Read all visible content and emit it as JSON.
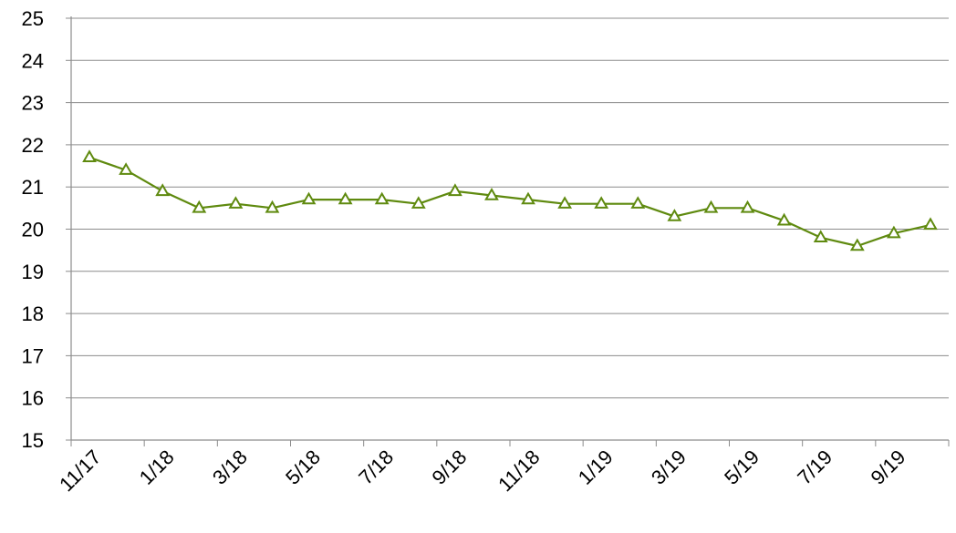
{
  "chart_data": {
    "type": "line",
    "title": "",
    "xlabel": "",
    "ylabel": "",
    "ylim": [
      15,
      25
    ],
    "y_ticks": [
      15,
      16,
      17,
      18,
      19,
      20,
      21,
      22,
      23,
      24,
      25
    ],
    "grid": "horizontal",
    "legend": "none",
    "x": [
      "11/17",
      "12/17",
      "1/18",
      "2/18",
      "3/18",
      "4/18",
      "5/18",
      "6/18",
      "7/18",
      "8/18",
      "9/18",
      "10/18",
      "11/18",
      "12/18",
      "1/19",
      "2/19",
      "3/19",
      "4/19",
      "5/19",
      "6/19",
      "7/19",
      "8/19",
      "9/19",
      "10/19"
    ],
    "x_tick_labels": [
      "11/17",
      "1/18",
      "3/18",
      "5/18",
      "7/18",
      "9/18",
      "11/18",
      "1/19",
      "3/19",
      "5/19",
      "7/19",
      "9/19"
    ],
    "series": [
      {
        "values": [
          21.7,
          21.4,
          20.9,
          20.5,
          20.6,
          20.5,
          20.7,
          20.7,
          20.7,
          20.6,
          20.9,
          20.8,
          20.7,
          20.6,
          20.6,
          20.6,
          20.3,
          20.5,
          20.5,
          20.2,
          19.8,
          19.6,
          19.9,
          20.1
        ],
        "color": "#5f8a0f",
        "marker": "triangle-open"
      }
    ]
  }
}
